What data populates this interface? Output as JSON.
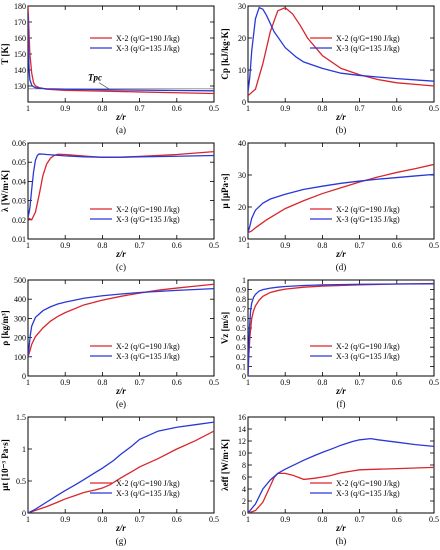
{
  "chart_data": [
    {
      "type": "line",
      "panel": "(a)",
      "xlabel": "z/r",
      "ylabel": "T [K]",
      "xlim": [
        1,
        0.5
      ],
      "ylim": [
        120,
        180
      ],
      "xticks": [
        1,
        0.9,
        0.8,
        0.7,
        0.6,
        0.5
      ],
      "yticks": [
        130,
        140,
        150,
        160,
        170,
        180
      ],
      "legend_position": "top-right",
      "annotation": {
        "text": "Tpc",
        "x": 0.82,
        "y": 131.5
      },
      "reference_line": {
        "y": 128.2
      },
      "series": [
        {
          "name": "X-2 (q/G=190 J/kg)",
          "color": "#d9262c",
          "x": [
            1.0,
            0.998,
            0.995,
            0.99,
            0.985,
            0.98,
            0.97,
            0.96,
            0.95,
            0.9,
            0.8,
            0.7,
            0.6,
            0.5
          ],
          "y": [
            180,
            168,
            150,
            138,
            132,
            130,
            129,
            128.5,
            128,
            127.3,
            126.8,
            126.3,
            125.8,
            125.3
          ]
        },
        {
          "name": "X-3 (q/G=135 J/kg)",
          "color": "#2a38d6",
          "x": [
            1.0,
            0.999,
            0.997,
            0.995,
            0.99,
            0.985,
            0.98,
            0.97,
            0.95,
            0.9,
            0.8,
            0.7,
            0.6,
            0.5
          ],
          "y": [
            175,
            155,
            140,
            134,
            130.5,
            129.5,
            129,
            128.6,
            128.3,
            128,
            127.7,
            127.4,
            127.2,
            127
          ]
        }
      ]
    },
    {
      "type": "line",
      "panel": "(b)",
      "xlabel": "z/r",
      "ylabel": "Cp [kJ/kg·K]",
      "xlim": [
        1,
        0.5
      ],
      "ylim": [
        0,
        30
      ],
      "xticks": [
        1,
        0.9,
        0.8,
        0.7,
        0.6,
        0.5
      ],
      "yticks": [
        0,
        10,
        20,
        30
      ],
      "legend_position": "top-right",
      "series": [
        {
          "name": "X-2 (q/G=190 J/kg)",
          "color": "#d9262c",
          "x": [
            1.0,
            0.98,
            0.96,
            0.94,
            0.92,
            0.9,
            0.88,
            0.86,
            0.84,
            0.8,
            0.75,
            0.7,
            0.65,
            0.6,
            0.55,
            0.5
          ],
          "y": [
            2,
            4,
            12,
            22,
            28.5,
            29.5,
            27.5,
            24,
            20,
            14.5,
            10.5,
            8.5,
            7,
            6,
            5.5,
            5
          ]
        },
        {
          "name": "X-3 (q/G=135 J/kg)",
          "color": "#2a38d6",
          "x": [
            1.0,
            0.995,
            0.99,
            0.98,
            0.97,
            0.96,
            0.95,
            0.93,
            0.9,
            0.87,
            0.85,
            0.8,
            0.75,
            0.7,
            0.6,
            0.5
          ],
          "y": [
            3,
            8,
            16,
            26,
            29.5,
            29,
            27,
            22,
            17,
            14,
            12.5,
            10.5,
            9,
            8.3,
            7.3,
            6.5
          ]
        }
      ]
    },
    {
      "type": "line",
      "panel": "(c)",
      "xlabel": "z/r",
      "ylabel": "λ [W/m·K]",
      "xlim": [
        1,
        0.5
      ],
      "ylim": [
        0.01,
        0.06
      ],
      "xticks": [
        1,
        0.9,
        0.8,
        0.7,
        0.6,
        0.5
      ],
      "yticks": [
        0.01,
        0.02,
        0.03,
        0.04,
        0.05,
        0.06
      ],
      "legend_position": "bottom-right",
      "series": [
        {
          "name": "X-2 (q/G=190 J/kg)",
          "color": "#d9262c",
          "x": [
            1.0,
            0.99,
            0.98,
            0.97,
            0.96,
            0.95,
            0.94,
            0.93,
            0.92,
            0.9,
            0.85,
            0.8,
            0.75,
            0.7,
            0.6,
            0.5
          ],
          "y": [
            0.021,
            0.02,
            0.024,
            0.033,
            0.043,
            0.049,
            0.052,
            0.0535,
            0.0541,
            0.054,
            0.0532,
            0.0525,
            0.0526,
            0.053,
            0.054,
            0.0555
          ]
        },
        {
          "name": "X-3 (q/G=135 J/kg)",
          "color": "#2a38d6",
          "x": [
            1.0,
            0.995,
            0.99,
            0.985,
            0.98,
            0.975,
            0.97,
            0.96,
            0.95,
            0.9,
            0.85,
            0.8,
            0.75,
            0.7,
            0.6,
            0.5
          ],
          "y": [
            0.021,
            0.026,
            0.036,
            0.045,
            0.051,
            0.0535,
            0.0543,
            0.0542,
            0.054,
            0.0533,
            0.0528,
            0.0526,
            0.0526,
            0.0528,
            0.0531,
            0.0535
          ]
        }
      ]
    },
    {
      "type": "line",
      "panel": "(d)",
      "xlabel": "z/r",
      "ylabel": "μ [μPa·s]",
      "xlim": [
        1,
        0.5
      ],
      "ylim": [
        10,
        40
      ],
      "xticks": [
        1,
        0.9,
        0.8,
        0.7,
        0.6,
        0.5
      ],
      "yticks": [
        10,
        20,
        30,
        40
      ],
      "legend_position": "bottom-right",
      "series": [
        {
          "name": "X-2 (q/G=190 J/kg)",
          "color": "#d9262c",
          "x": [
            1.0,
            0.99,
            0.98,
            0.95,
            0.9,
            0.85,
            0.8,
            0.75,
            0.7,
            0.65,
            0.6,
            0.55,
            0.5
          ],
          "y": [
            12,
            12.5,
            13.5,
            16,
            19.5,
            22,
            24.2,
            26,
            27.8,
            29.4,
            30.8,
            32,
            33.3
          ]
        },
        {
          "name": "X-3 (q/G=135 J/kg)",
          "color": "#2a38d6",
          "x": [
            1.0,
            0.995,
            0.99,
            0.98,
            0.96,
            0.94,
            0.9,
            0.85,
            0.8,
            0.75,
            0.7,
            0.65,
            0.6,
            0.55,
            0.5
          ],
          "y": [
            12,
            14,
            16.5,
            19,
            21.2,
            22.5,
            24,
            25.5,
            26.5,
            27.4,
            28.1,
            28.7,
            29.2,
            29.7,
            30.2
          ]
        }
      ]
    },
    {
      "type": "line",
      "panel": "(e)",
      "xlabel": "z/r",
      "ylabel": "ρ [kg/m³]",
      "xlim": [
        1,
        0.5
      ],
      "ylim": [
        0,
        500
      ],
      "xticks": [
        1,
        0.9,
        0.8,
        0.7,
        0.6,
        0.5
      ],
      "yticks": [
        0,
        100,
        200,
        300,
        400,
        500
      ],
      "legend_position": "bottom-right",
      "series": [
        {
          "name": "X-2 (q/G=190 J/kg)",
          "color": "#d9262c",
          "x": [
            1.0,
            0.995,
            0.99,
            0.98,
            0.96,
            0.94,
            0.92,
            0.9,
            0.85,
            0.8,
            0.75,
            0.7,
            0.65,
            0.6,
            0.55,
            0.5
          ],
          "y": [
            100,
            130,
            165,
            205,
            250,
            285,
            310,
            330,
            370,
            395,
            415,
            432,
            447,
            458,
            468,
            478
          ]
        },
        {
          "name": "X-3 (q/G=135 J/kg)",
          "color": "#2a38d6",
          "x": [
            1.0,
            0.997,
            0.994,
            0.99,
            0.98,
            0.96,
            0.94,
            0.92,
            0.9,
            0.85,
            0.8,
            0.75,
            0.7,
            0.6,
            0.5
          ],
          "y": [
            100,
            150,
            210,
            260,
            305,
            340,
            360,
            375,
            385,
            405,
            418,
            427,
            435,
            446,
            455
          ]
        }
      ]
    },
    {
      "type": "line",
      "panel": "(f)",
      "xlabel": "z/r",
      "ylabel": "Vz [m/s]",
      "xlim": [
        1,
        0.5
      ],
      "ylim": [
        0,
        1.0
      ],
      "xticks": [
        1,
        0.9,
        0.8,
        0.7,
        0.6,
        0.5
      ],
      "yticks": [
        0,
        0.1,
        0.2,
        0.3,
        0.4,
        0.5,
        0.6,
        0.7,
        0.8,
        0.9,
        1.0
      ],
      "legend_position": "bottom-right",
      "series": [
        {
          "name": "X-2 (q/G=190 J/kg)",
          "color": "#d9262c",
          "x": [
            1.0,
            0.998,
            0.995,
            0.99,
            0.985,
            0.98,
            0.97,
            0.96,
            0.94,
            0.92,
            0.9,
            0.85,
            0.8,
            0.7,
            0.6,
            0.5
          ],
          "y": [
            0.0,
            0.2,
            0.4,
            0.6,
            0.68,
            0.73,
            0.79,
            0.83,
            0.87,
            0.89,
            0.905,
            0.925,
            0.937,
            0.95,
            0.958,
            0.963
          ]
        },
        {
          "name": "X-3 (q/G=135 J/kg)",
          "color": "#2a38d6",
          "x": [
            1.0,
            0.998,
            0.996,
            0.993,
            0.99,
            0.985,
            0.98,
            0.97,
            0.96,
            0.94,
            0.92,
            0.9,
            0.85,
            0.8,
            0.7,
            0.6,
            0.5
          ],
          "y": [
            0.0,
            0.25,
            0.5,
            0.68,
            0.76,
            0.82,
            0.85,
            0.885,
            0.9,
            0.915,
            0.925,
            0.932,
            0.943,
            0.949,
            0.955,
            0.958,
            0.96
          ]
        }
      ]
    },
    {
      "type": "line",
      "panel": "(g)",
      "xlabel": "z/r",
      "ylabel": "μt [10⁻³ Pa·s]",
      "xlim": [
        1,
        0.5
      ],
      "ylim": [
        0,
        1.5
      ],
      "xticks": [
        1,
        0.9,
        0.8,
        0.7,
        0.6,
        0.5
      ],
      "yticks": [
        0,
        0.5,
        1.0,
        1.5
      ],
      "legend_position": "bottom-right",
      "series": [
        {
          "name": "X-2 (q/G=190 J/kg)",
          "color": "#d9262c",
          "x": [
            1.0,
            0.98,
            0.95,
            0.92,
            0.9,
            0.87,
            0.85,
            0.82,
            0.8,
            0.78,
            0.75,
            0.72,
            0.7,
            0.65,
            0.6,
            0.55,
            0.5
          ],
          "y": [
            0.0,
            0.04,
            0.1,
            0.17,
            0.22,
            0.28,
            0.32,
            0.36,
            0.39,
            0.44,
            0.55,
            0.65,
            0.72,
            0.85,
            1.0,
            1.13,
            1.28
          ]
        },
        {
          "name": "X-3 (q/G=135 J/kg)",
          "color": "#2a38d6",
          "x": [
            1.0,
            0.98,
            0.95,
            0.92,
            0.9,
            0.87,
            0.85,
            0.82,
            0.8,
            0.77,
            0.75,
            0.72,
            0.7,
            0.65,
            0.6,
            0.55,
            0.5
          ],
          "y": [
            0.0,
            0.06,
            0.17,
            0.28,
            0.35,
            0.45,
            0.52,
            0.63,
            0.7,
            0.82,
            0.92,
            1.05,
            1.15,
            1.28,
            1.34,
            1.38,
            1.42
          ]
        }
      ]
    },
    {
      "type": "line",
      "panel": "(h)",
      "xlabel": "z/r",
      "ylabel": "λeff [W/m·K]",
      "xlim": [
        1,
        0.5
      ],
      "ylim": [
        0,
        16
      ],
      "xticks": [
        1,
        0.9,
        0.8,
        0.7,
        0.6,
        0.5
      ],
      "yticks": [
        0,
        2,
        4,
        6,
        8,
        10,
        12,
        14,
        16
      ],
      "legend_position": "bottom-right",
      "series": [
        {
          "name": "X-2 (q/G=190 J/kg)",
          "color": "#d9262c",
          "x": [
            1.0,
            0.98,
            0.96,
            0.94,
            0.93,
            0.92,
            0.9,
            0.88,
            0.85,
            0.82,
            0.8,
            0.78,
            0.75,
            0.72,
            0.7,
            0.65,
            0.6,
            0.55,
            0.5
          ],
          "y": [
            0.0,
            0.4,
            1.8,
            4.5,
            5.9,
            6.6,
            6.6,
            6.3,
            5.6,
            5.8,
            6.0,
            6.2,
            6.7,
            7.0,
            7.2,
            7.3,
            7.4,
            7.5,
            7.6
          ]
        },
        {
          "name": "X-3 (q/G=135 J/kg)",
          "color": "#2a38d6",
          "x": [
            1.0,
            0.98,
            0.96,
            0.94,
            0.92,
            0.9,
            0.87,
            0.85,
            0.82,
            0.8,
            0.77,
            0.75,
            0.72,
            0.7,
            0.67,
            0.65,
            0.6,
            0.55,
            0.5
          ],
          "y": [
            0.0,
            1.5,
            4.0,
            5.5,
            6.6,
            7.3,
            8.2,
            8.8,
            9.6,
            10.1,
            10.8,
            11.3,
            11.9,
            12.2,
            12.4,
            12.2,
            11.8,
            11.4,
            11.1
          ]
        }
      ]
    }
  ]
}
